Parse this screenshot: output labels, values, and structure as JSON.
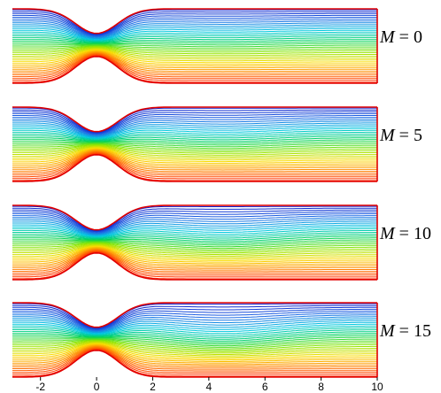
{
  "figure": {
    "panels": [
      {
        "parameter": "M",
        "equals": "=",
        "value": "0"
      },
      {
        "parameter": "M",
        "equals": "=",
        "value": "5"
      },
      {
        "parameter": "M",
        "equals": "=",
        "value": "10"
      },
      {
        "parameter": "M",
        "equals": "=",
        "value": "15"
      }
    ],
    "x_ticks": [
      "-2",
      "0",
      "2",
      "4",
      "6",
      "8",
      "10"
    ],
    "x_range": [
      -3,
      10
    ],
    "line_count": 40,
    "colors": {
      "wall": "#e00000",
      "palette": [
        "#0a14c8",
        "#1e6ee6",
        "#00c8e0",
        "#00d25a",
        "#8ce600",
        "#fadc00",
        "#ff8200",
        "#ff1e00"
      ]
    }
  }
}
